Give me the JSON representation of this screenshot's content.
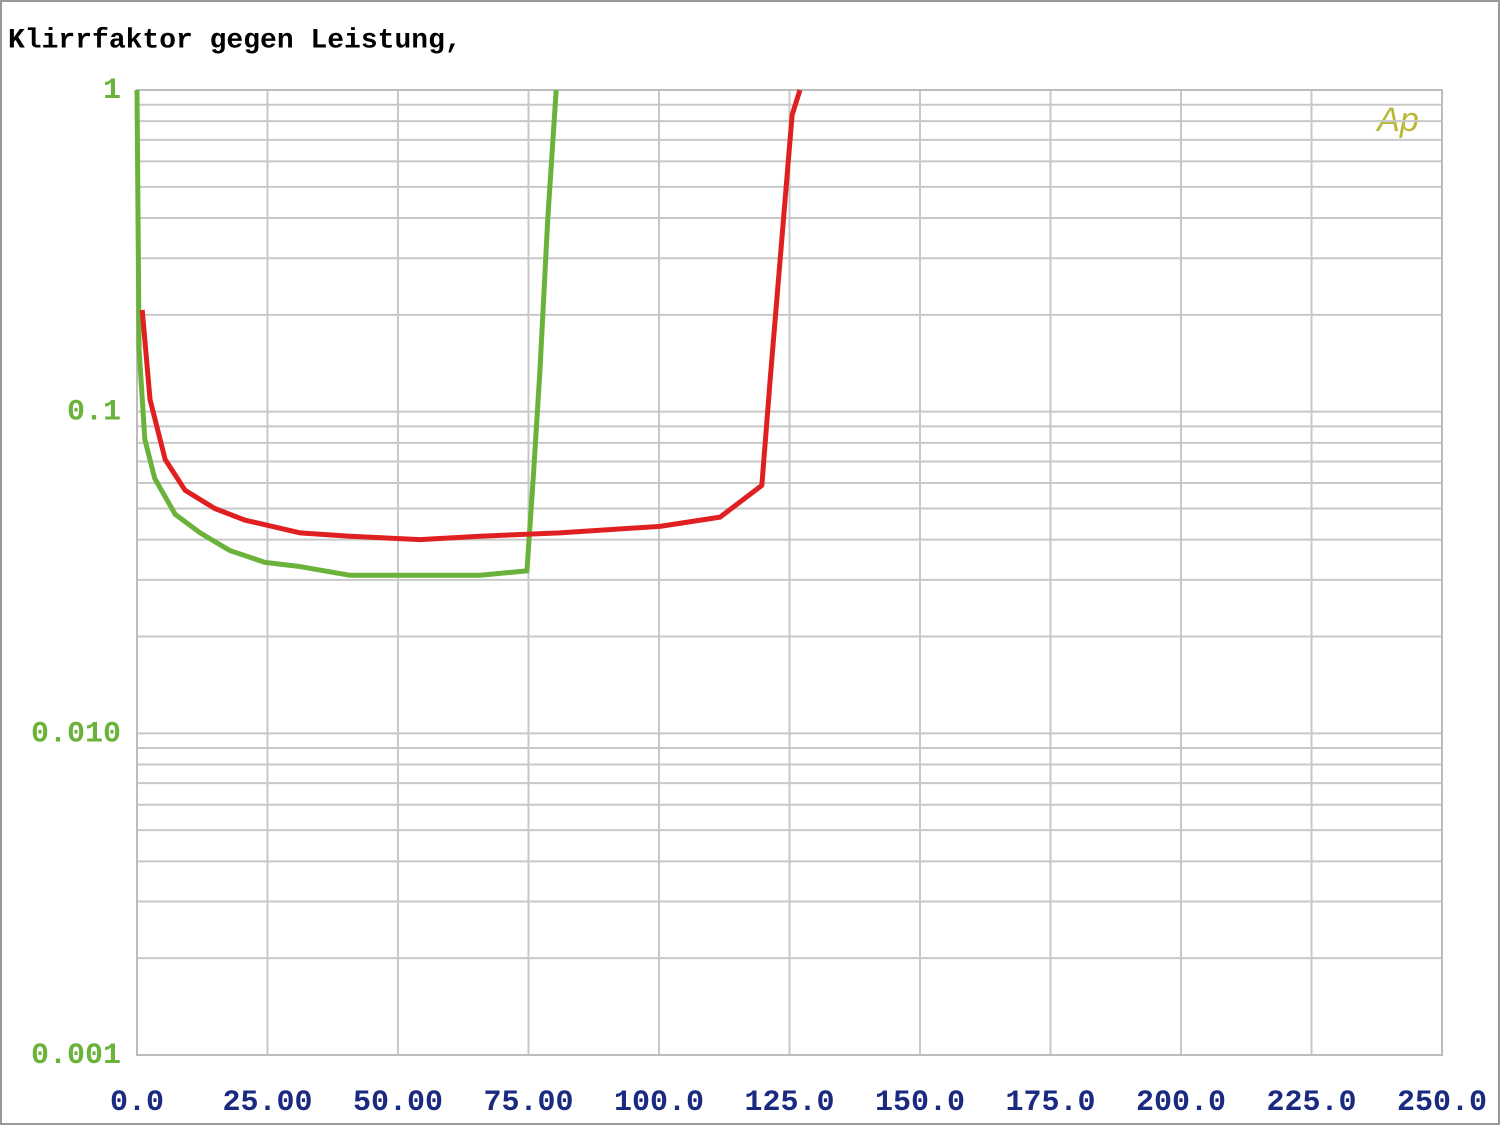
{
  "chart_data": {
    "type": "line",
    "title": "Klirrfaktor gegen Leistung,",
    "logo": "Ap",
    "log_y": true,
    "grid": true,
    "minor_grid": true,
    "xlim": [
      0,
      250
    ],
    "ylim": [
      0.001,
      1
    ],
    "xticks": [
      {
        "value": 0,
        "label": "0.0"
      },
      {
        "value": 25,
        "label": "25.00"
      },
      {
        "value": 50,
        "label": "50.00"
      },
      {
        "value": 75,
        "label": "75.00"
      },
      {
        "value": 100,
        "label": "100.0"
      },
      {
        "value": 125,
        "label": "125.0"
      },
      {
        "value": 150,
        "label": "150.0"
      },
      {
        "value": 175,
        "label": "175.0"
      },
      {
        "value": 200,
        "label": "200.0"
      },
      {
        "value": 225,
        "label": "225.0"
      },
      {
        "value": 250,
        "label": "250.0"
      }
    ],
    "yticks": [
      1,
      0.1,
      {
        "value": 0.01,
        "label": "0.010"
      },
      0.001
    ],
    "series": [
      {
        "color": "#6ab23a",
        "x": [
          0,
          0.4,
          1.5,
          3.4,
          7.3,
          12.1,
          17.8,
          24.5,
          31.2,
          40.8,
          54.2,
          65.7,
          74.7,
          75.9,
          77.2,
          78.7,
          80.3
        ],
        "values": [
          1,
          0.156,
          0.082,
          0.062,
          0.048,
          0.042,
          0.037,
          0.034,
          0.033,
          0.031,
          0.031,
          0.031,
          0.032,
          0.062,
          0.135,
          0.4,
          1
        ]
      },
      {
        "color": "#e02020",
        "x": [
          1.0,
          2.5,
          5.4,
          9.2,
          14.9,
          20.7,
          31.2,
          40.8,
          54.2,
          65.7,
          81.0,
          100.2,
          111.7,
          119.7,
          121.3,
          123.2,
          125.5,
          127.0
        ],
        "values": [
          0.207,
          0.109,
          0.071,
          0.057,
          0.05,
          0.046,
          0.042,
          0.041,
          0.04,
          0.041,
          0.042,
          0.044,
          0.047,
          0.059,
          0.126,
          0.296,
          0.836,
          1
        ]
      }
    ]
  }
}
